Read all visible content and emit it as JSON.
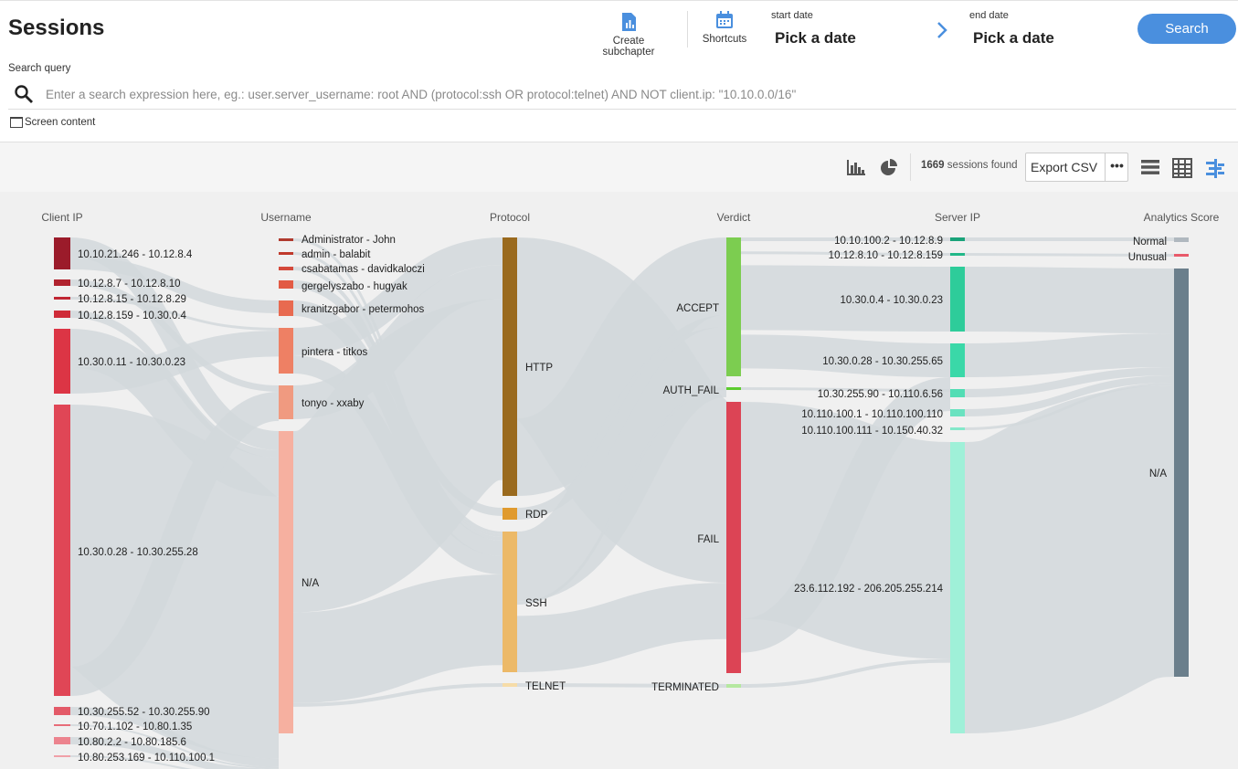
{
  "header": {
    "title": "Sessions",
    "create_subchapter": "Create subchapter",
    "shortcuts": "Shortcuts",
    "start_date_label": "start date",
    "start_date_value": "Pick a date",
    "end_date_label": "end date",
    "end_date_value": "Pick a date",
    "search_button": "Search"
  },
  "search": {
    "label": "Search query",
    "placeholder": "Enter a search expression here, eg.: user.server_username: root AND (protocol:ssh OR protocol:telnet) AND NOT client.ip: \"10.10.0.0/16\"",
    "screen_content": "Screen content"
  },
  "toolbar": {
    "sessions_count": "1669",
    "sessions_suffix": "sessions found",
    "export_label": "Export CSV",
    "more_label": "•••"
  },
  "sankey": {
    "columns": [
      "Client IP",
      "Username",
      "Protocol",
      "Verdict",
      "Server IP",
      "Analytics Score"
    ],
    "client_ip": [
      {
        "label": "10.10.21.246 - 10.12.8.4",
        "color": "#9b1b2a"
      },
      {
        "label": "10.12.8.7 - 10.12.8.10",
        "color": "#b0222e"
      },
      {
        "label": "10.12.8.15 - 10.12.8.29",
        "color": "#c02633"
      },
      {
        "label": "10.12.8.159 - 10.30.0.4",
        "color": "#cf2b38"
      },
      {
        "label": "10.30.0.11 - 10.30.0.23",
        "color": "#dc3545"
      },
      {
        "label": "10.30.0.28 - 10.30.255.28",
        "color": "#e04656"
      },
      {
        "label": "10.30.255.52 - 10.30.255.90",
        "color": "#e35a68"
      },
      {
        "label": "10.70.1.102 - 10.80.1.35",
        "color": "#e76d79"
      },
      {
        "label": "10.80.2.2 - 10.80.185.6",
        "color": "#ec838e"
      },
      {
        "label": "10.80.253.169 - 10.110.100.1",
        "color": "#f0a0a8"
      }
    ],
    "username": [
      {
        "label": "Administrator - John",
        "color": "#b03a2e"
      },
      {
        "label": "admin - balabit",
        "color": "#c0392b"
      },
      {
        "label": "csabatamas - davidkaloczi",
        "color": "#d4483a"
      },
      {
        "label": "gergelyszabo - hugyak",
        "color": "#e25a44"
      },
      {
        "label": "kranitzgabor - petermohos",
        "color": "#e86a50"
      },
      {
        "label": "pintera - titkos",
        "color": "#ee8064"
      },
      {
        "label": "tonyo - xxaby",
        "color": "#f09a80"
      },
      {
        "label": "N/A",
        "color": "#f6b0a0"
      }
    ],
    "protocol": [
      {
        "label": "HTTP",
        "color": "#9a6a1e"
      },
      {
        "label": "RDP",
        "color": "#e09a2e"
      },
      {
        "label": "SSH",
        "color": "#ecb968"
      },
      {
        "label": "TELNET",
        "color": "#f6dca8"
      }
    ],
    "verdict": [
      {
        "label": "ACCEPT",
        "color": "#7ccd50"
      },
      {
        "label": "AUTH_FAIL",
        "color": "#5ccc2e"
      },
      {
        "label": "FAIL",
        "color": "#dc4455"
      },
      {
        "label": "TERMINATED",
        "color": "#b5e8a0"
      }
    ],
    "server_ip": [
      {
        "label": "10.10.100.2 - 10.12.8.9",
        "color": "#1aa37a"
      },
      {
        "label": "10.12.8.10 - 10.12.8.159",
        "color": "#22b888"
      },
      {
        "label": "10.30.0.4 - 10.30.0.23",
        "color": "#2ecc9a"
      },
      {
        "label": "10.30.0.28 - 10.30.255.65",
        "color": "#3ad8a8"
      },
      {
        "label": "10.30.255.90 - 10.110.6.56",
        "color": "#52ddb4"
      },
      {
        "label": "10.110.100.1 - 10.110.100.110",
        "color": "#6ae2c0"
      },
      {
        "label": "10.110.100.111 - 10.150.40.32",
        "color": "#84e8ca"
      },
      {
        "label": "23.6.112.192 - 206.205.255.214",
        "color": "#9ff0d8"
      }
    ],
    "analytics_score": [
      {
        "label": "Normal",
        "color": "#b0b8bf"
      },
      {
        "label": "Unusual",
        "color": "#e85a6a"
      },
      {
        "label": "N/A",
        "color": "#6b7f8c"
      }
    ]
  }
}
